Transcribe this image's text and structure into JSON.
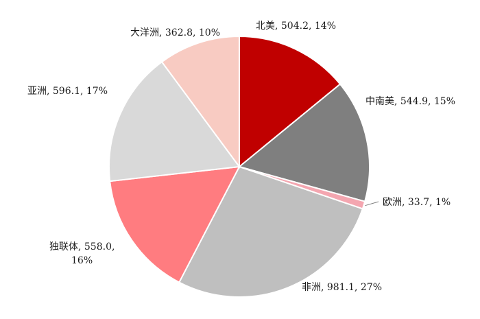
{
  "chart_data": {
    "type": "pie",
    "title": "",
    "slices": [
      {
        "name": "北美",
        "value": 504.2,
        "pct": "14%",
        "label": "北美, 504.2, 14%",
        "color": "#c00000"
      },
      {
        "name": "中南美",
        "value": 544.9,
        "pct": "15%",
        "label": "中南美, 544.9, 15%",
        "color": "#7f7f7f"
      },
      {
        "name": "欧洲",
        "value": 33.7,
        "pct": "1%",
        "label": "欧洲, 33.7, 1%",
        "color": "#f4a6b0"
      },
      {
        "name": "非洲",
        "value": 981.1,
        "pct": "27%",
        "label": "非洲, 981.1, 27%",
        "color": "#bfbfbf"
      },
      {
        "name": "独联体",
        "value": 558.0,
        "pct": "16%",
        "label": "独联体, 558.0,",
        "label2": "16%",
        "color": "#ff7c80"
      },
      {
        "name": "亚洲",
        "value": 596.1,
        "pct": "17%",
        "label": "亚洲, 596.1, 17%",
        "color": "#d9d9d9"
      },
      {
        "name": "大洋洲",
        "value": 362.8,
        "pct": "10%",
        "label": "大洋洲, 362.8, 10%",
        "color": "#f8cbc2"
      }
    ],
    "start_angle": "12 o'clock",
    "direction": "clockwise",
    "legend": "none"
  }
}
